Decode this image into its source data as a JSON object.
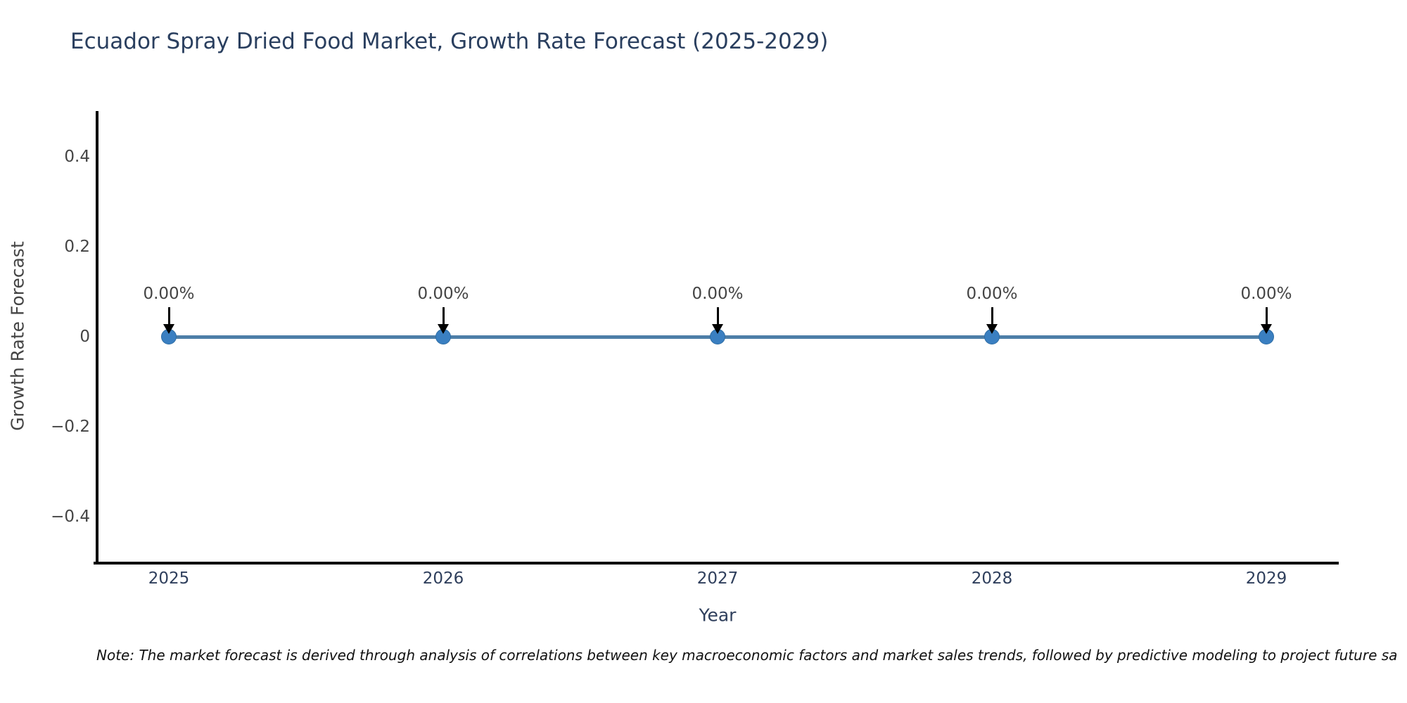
{
  "title": "Ecuador Spray Dried Food Market, Growth Rate Forecast (2025-2029)",
  "axes": {
    "x_label": "Year",
    "y_label": "Growth Rate Forecast",
    "x_ticks": [
      "2025",
      "2026",
      "2027",
      "2028",
      "2029"
    ],
    "y_ticks": [
      "0.4",
      "0.2",
      "0",
      "−0.2",
      "−0.4"
    ]
  },
  "note": "Note: The market forecast is derived through analysis of correlations between key macroeconomic factors and market sales trends, followed by predictive modeling to project future sa",
  "colors": {
    "background": "#ffffff",
    "title": "#2a3f5f",
    "tick_text": "#444444",
    "x_tick_text": "#2f3f5c",
    "axis_label": "#444444",
    "x_axis_label": "#2f3f5c",
    "spine": "#000000",
    "line": "#4d7ea8",
    "marker": "#3a7fc1",
    "marker_edge": "#2e6da4",
    "arrow": "#000000",
    "annotation_text": "#444444",
    "note_text": "#111111"
  },
  "chart_data": {
    "type": "line",
    "title": "Ecuador Spray Dried Food Market, Growth Rate Forecast (2025-2029)",
    "xlabel": "Year",
    "ylabel": "Growth Rate Forecast",
    "x": [
      2025,
      2026,
      2027,
      2028,
      2029
    ],
    "series": [
      {
        "name": "Growth Rate Forecast",
        "values": [
          0,
          0,
          0,
          0,
          0
        ]
      }
    ],
    "point_labels": [
      "0.00%",
      "0.00%",
      "0.00%",
      "0.00%",
      "0.00%"
    ],
    "ylim": [
      -0.5,
      0.5
    ],
    "y_tick_values": [
      0.4,
      0.2,
      0,
      -0.2,
      -0.4
    ],
    "grid": false,
    "legend": false,
    "marker": "circle",
    "annotation_arrows": "down"
  }
}
